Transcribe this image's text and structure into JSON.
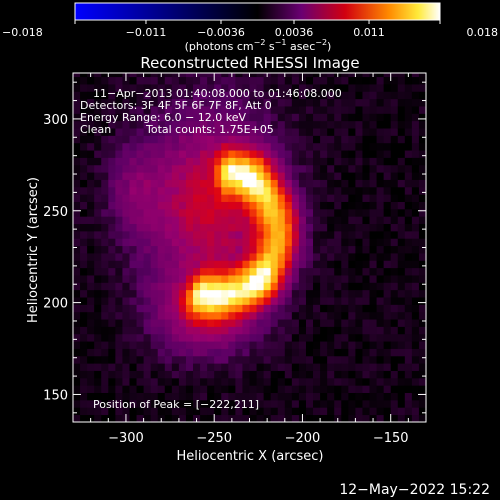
{
  "chart_data": {
    "type": "heatmap",
    "title": "Reconstructed RHESSI Image",
    "xlabel": "Heliocentric X (arcsec)",
    "ylabel": "Heliocentric Y (arcsec)",
    "xlim": [
      -330,
      -130
    ],
    "ylim": [
      135,
      325
    ],
    "x_ticks": [
      {
        "value": -300,
        "label": "−300"
      },
      {
        "value": -250,
        "label": "−250"
      },
      {
        "value": -200,
        "label": "−200"
      },
      {
        "value": -150,
        "label": "−150"
      }
    ],
    "y_ticks": [
      {
        "value": 150,
        "label": "150"
      },
      {
        "value": 200,
        "label": "200"
      },
      {
        "value": 250,
        "label": "250"
      },
      {
        "value": 300,
        "label": "300"
      }
    ],
    "colorbar": {
      "range": [
        -0.018,
        0.018
      ],
      "ticks": [
        {
          "value": -0.018,
          "label": "−0.018"
        },
        {
          "value": -0.011,
          "label": "−0.011"
        },
        {
          "value": -0.0036,
          "label": "−0.0036"
        },
        {
          "value": 0.0036,
          "label": "0.0036"
        },
        {
          "value": 0.011,
          "label": "0.011"
        },
        {
          "value": 0.018,
          "label": "0.018"
        }
      ],
      "units_text": "(photons cm",
      "units_sup1": "−2",
      "units_mid": " s",
      "units_sup2": "−1",
      "units_mid2": " asec",
      "units_sup3": "−2",
      "units_end": ")"
    },
    "annotations": {
      "time_range": "11−Apr−2013 01:40:08.000 to 01:46:08.000",
      "detectors": "Detectors: 3F 4F 5F 6F 7F 8F, Att 0",
      "energy_range": "Energy Range: 6.0 − 12.0 keV",
      "method": "Clean",
      "total_counts": "Total counts: 1.75E+05",
      "peak": "Position of Peak = [−222,211]"
    },
    "peak_position": [
      -222,
      211
    ],
    "pixel_size": 4,
    "sources": [
      {
        "shape": "gauss",
        "x": -252,
        "y": 255,
        "sx": 26,
        "sy": 32,
        "amp": 0.007
      },
      {
        "shape": "gauss",
        "x": -255,
        "y": 195,
        "sx": 20,
        "sy": 16,
        "amp": 0.0055
      },
      {
        "shape": "gauss",
        "x": -295,
        "y": 260,
        "sx": 10,
        "sy": 16,
        "amp": 0.0025
      },
      {
        "shape": "arc",
        "cx": -248,
        "cy": 238,
        "r": 34,
        "width": 8,
        "amp": 0.012,
        "from_deg": -105,
        "to_deg": 78
      },
      {
        "shape": "gauss",
        "x": -222,
        "y": 211,
        "sx": 7,
        "sy": 8,
        "amp": 0.0045
      },
      {
        "shape": "gauss",
        "x": -225,
        "y": 275,
        "sx": 7,
        "sy": 9,
        "amp": 0.003
      }
    ],
    "background_level": 0.0004,
    "timestamp": "12−May−2022 15:22"
  }
}
